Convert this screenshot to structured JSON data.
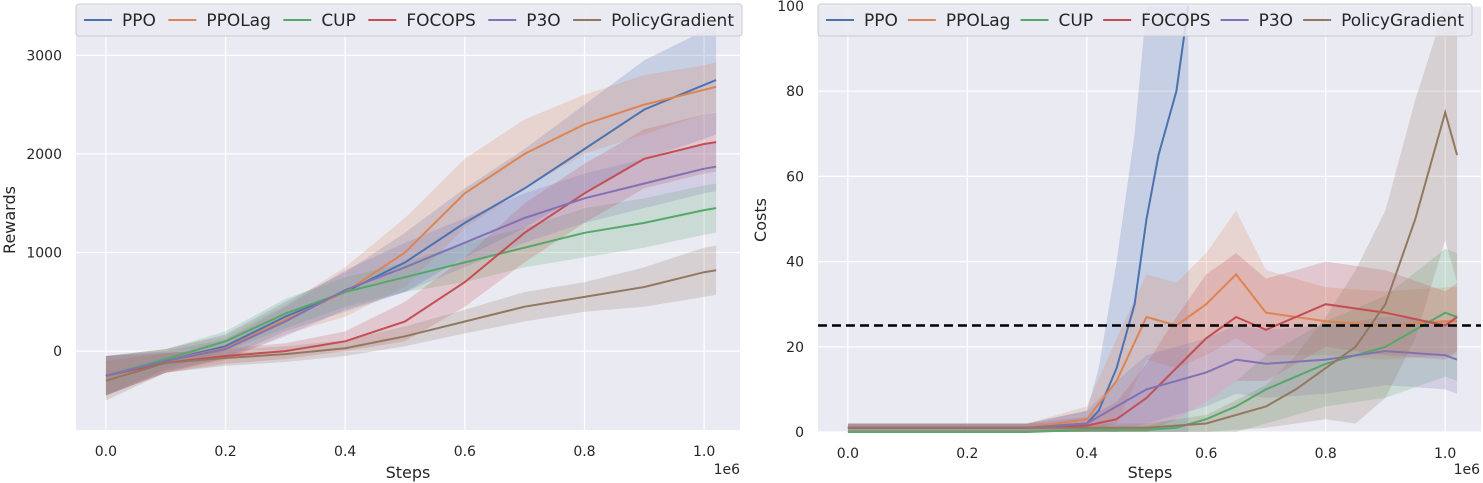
{
  "chart_data": [
    {
      "type": "line",
      "xlabel": "Steps",
      "ylabel": "Rewards",
      "x_offset_label": "1e6",
      "xlim": [
        -0.05,
        1.06
      ],
      "ylim": [
        -800,
        3500
      ],
      "xticks": [
        0.0,
        0.2,
        0.4,
        0.6,
        0.8,
        1.0
      ],
      "xtick_labels": [
        "0.0",
        "0.2",
        "0.4",
        "0.6",
        "0.8",
        "1.0"
      ],
      "yticks": [
        0,
        1000,
        2000,
        3000
      ],
      "ytick_labels": [
        "0",
        "1000",
        "2000",
        "3000"
      ],
      "grid": true,
      "legend_position": "top",
      "x": [
        0.0,
        0.1,
        0.2,
        0.3,
        0.4,
        0.5,
        0.6,
        0.7,
        0.8,
        0.9,
        1.0,
        1.02
      ],
      "series": [
        {
          "name": "PPO",
          "color": "#4c72b0",
          "values": [
            -250,
            -100,
            50,
            350,
            600,
            900,
            1300,
            1650,
            2050,
            2450,
            2700,
            2750
          ],
          "band": [
            200,
            120,
            120,
            150,
            200,
            300,
            350,
            400,
            450,
            500,
            550,
            550
          ]
        },
        {
          "name": "PPOLag",
          "color": "#dd8452",
          "values": [
            -250,
            -100,
            30,
            320,
            600,
            1000,
            1600,
            2000,
            2300,
            2500,
            2650,
            2680
          ],
          "band": [
            200,
            120,
            120,
            150,
            250,
            350,
            350,
            350,
            300,
            300,
            250,
            250
          ]
        },
        {
          "name": "CUP",
          "color": "#55a868",
          "values": [
            -250,
            -80,
            100,
            380,
            600,
            750,
            900,
            1050,
            1200,
            1300,
            1430,
            1450
          ],
          "band": [
            200,
            100,
            100,
            150,
            150,
            150,
            200,
            200,
            250,
            250,
            250,
            250
          ]
        },
        {
          "name": "FOCOPS",
          "color": "#c44e52",
          "values": [
            -250,
            -120,
            -50,
            0,
            100,
            300,
            700,
            1200,
            1600,
            1950,
            2100,
            2120
          ],
          "band": [
            200,
            100,
            80,
            80,
            100,
            200,
            250,
            300,
            300,
            300,
            300,
            300
          ]
        },
        {
          "name": "P3O",
          "color": "#8172b3",
          "values": [
            -250,
            -100,
            20,
            300,
            620,
            850,
            1100,
            1350,
            1550,
            1700,
            1850,
            1870
          ],
          "band": [
            200,
            100,
            100,
            150,
            200,
            250,
            250,
            250,
            250,
            250,
            250,
            250
          ]
        },
        {
          "name": "PolicyGradient",
          "color": "#937860",
          "values": [
            -300,
            -120,
            -70,
            -30,
            30,
            150,
            300,
            450,
            550,
            650,
            800,
            820
          ],
          "band": [
            200,
            100,
            80,
            80,
            80,
            100,
            120,
            150,
            150,
            200,
            250,
            250
          ]
        }
      ]
    },
    {
      "type": "line",
      "xlabel": "Steps",
      "ylabel": "Costs",
      "x_offset_label": "1e6",
      "xlim": [
        -0.05,
        1.06
      ],
      "ylim": [
        0,
        100
      ],
      "xticks": [
        0.0,
        0.2,
        0.4,
        0.6,
        0.8,
        1.0
      ],
      "xtick_labels": [
        "0.0",
        "0.2",
        "0.4",
        "0.6",
        "0.8",
        "1.0"
      ],
      "yticks": [
        0,
        20,
        40,
        60,
        80,
        100
      ],
      "ytick_labels": [
        "0",
        "20",
        "40",
        "60",
        "80",
        "100"
      ],
      "grid": true,
      "legend_position": "top",
      "threshold": 25,
      "threshold_color": "#000000",
      "series": [
        {
          "name": "PPO",
          "color": "#4c72b0",
          "x": [
            0.0,
            0.1,
            0.2,
            0.3,
            0.4,
            0.42,
            0.45,
            0.48,
            0.5,
            0.52,
            0.55,
            0.57
          ],
          "values": [
            1,
            1,
            1,
            1,
            2,
            5,
            15,
            30,
            50,
            65,
            80,
            100
          ],
          "band": [
            1,
            1,
            1,
            1,
            3,
            10,
            25,
            40,
            60,
            80,
            100,
            100
          ]
        },
        {
          "name": "PPOLag",
          "color": "#dd8452",
          "x": [
            0.0,
            0.1,
            0.2,
            0.3,
            0.4,
            0.45,
            0.5,
            0.55,
            0.6,
            0.65,
            0.7,
            0.8,
            0.9,
            1.0,
            1.02
          ],
          "values": [
            1,
            1,
            1,
            1,
            3,
            12,
            27,
            25,
            30,
            37,
            28,
            26,
            25,
            26,
            26
          ],
          "band": [
            1,
            1,
            1,
            1,
            3,
            10,
            10,
            10,
            12,
            15,
            10,
            8,
            8,
            8,
            8
          ]
        },
        {
          "name": "CUP",
          "color": "#55a868",
          "x": [
            0.0,
            0.1,
            0.2,
            0.3,
            0.4,
            0.5,
            0.55,
            0.6,
            0.65,
            0.7,
            0.8,
            0.9,
            1.0,
            1.02
          ],
          "values": [
            0,
            0,
            0,
            0,
            0.5,
            0.5,
            1,
            3,
            6,
            10,
            16,
            20,
            28,
            27
          ],
          "band": [
            0.5,
            0.5,
            0.5,
            0.5,
            0.5,
            1,
            2,
            4,
            6,
            8,
            10,
            12,
            15,
            15
          ]
        },
        {
          "name": "FOCOPS",
          "color": "#c44e52",
          "x": [
            0.0,
            0.1,
            0.2,
            0.3,
            0.4,
            0.45,
            0.5,
            0.55,
            0.6,
            0.65,
            0.7,
            0.8,
            0.9,
            1.0,
            1.02
          ],
          "values": [
            1,
            1,
            1,
            1,
            1.5,
            3,
            8,
            15,
            22,
            27,
            24,
            30,
            28,
            25,
            27
          ],
          "band": [
            1,
            1,
            1,
            1,
            2,
            4,
            8,
            12,
            15,
            15,
            12,
            10,
            10,
            8,
            8
          ]
        },
        {
          "name": "P3O",
          "color": "#8172b3",
          "x": [
            0.0,
            0.1,
            0.2,
            0.3,
            0.4,
            0.45,
            0.5,
            0.55,
            0.6,
            0.65,
            0.7,
            0.8,
            0.9,
            1.0,
            1.02
          ],
          "values": [
            1,
            1,
            1,
            1,
            2,
            6,
            10,
            12,
            14,
            17,
            16,
            17,
            19,
            18,
            17
          ],
          "band": [
            1,
            1,
            1,
            1,
            3,
            6,
            8,
            8,
            8,
            8,
            8,
            8,
            8,
            8,
            8
          ]
        },
        {
          "name": "PolicyGradient",
          "color": "#937860",
          "x": [
            0.0,
            0.1,
            0.2,
            0.3,
            0.4,
            0.5,
            0.6,
            0.7,
            0.75,
            0.8,
            0.85,
            0.9,
            0.95,
            1.0,
            1.02
          ],
          "values": [
            1,
            1,
            1,
            1,
            1,
            1,
            2,
            6,
            10,
            15,
            20,
            30,
            50,
            75,
            65
          ],
          "band": [
            1,
            1,
            1,
            1,
            1,
            1,
            2,
            5,
            8,
            12,
            18,
            22,
            28,
            30,
            30
          ]
        }
      ]
    }
  ]
}
